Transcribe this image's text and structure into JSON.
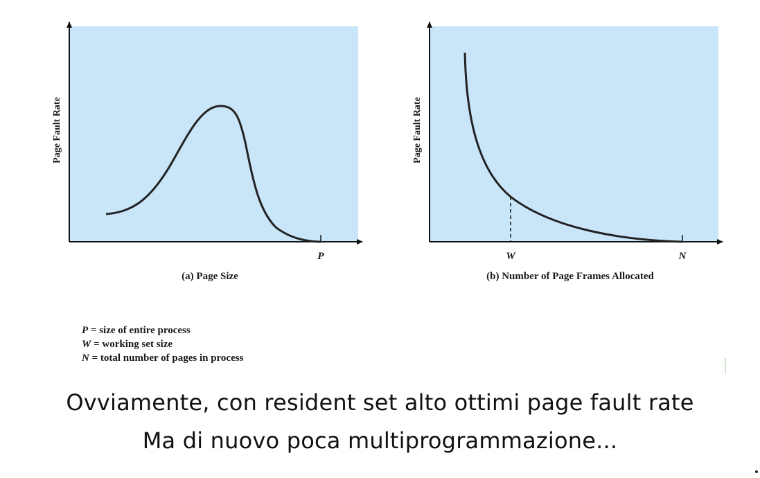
{
  "panels": [
    {
      "id": "a",
      "ylabel": "Page Fault Rate",
      "caption": "(a) Page Size",
      "x_marks": [
        "P"
      ]
    },
    {
      "id": "b",
      "ylabel": "Page Fault Rate",
      "caption": "(b) Number of Page Frames Allocated",
      "x_marks": [
        "W",
        "N"
      ]
    }
  ],
  "legend": [
    {
      "symbol": "P",
      "text": "= size of entire process"
    },
    {
      "symbol": "W",
      "text": "= working set size"
    },
    {
      "symbol": "N",
      "text": "= total number of pages in process"
    }
  ],
  "caption": {
    "line1": "Ovviamente, con resident set alto ottimi page fault rate",
    "line2": "Ma di nuovo poca multiprogrammazione..."
  },
  "colors": {
    "plot_background": "#c8e6f8",
    "curve": "#222222",
    "axis": "#111111"
  }
}
